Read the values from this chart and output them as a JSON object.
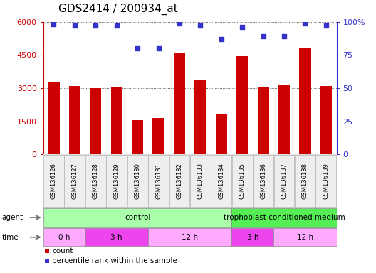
{
  "title": "GDS2414 / 200934_at",
  "samples": [
    "GSM136126",
    "GSM136127",
    "GSM136128",
    "GSM136129",
    "GSM136130",
    "GSM136131",
    "GSM136132",
    "GSM136133",
    "GSM136134",
    "GSM136135",
    "GSM136136",
    "GSM136137",
    "GSM136138",
    "GSM136139"
  ],
  "counts": [
    3300,
    3100,
    3000,
    3050,
    1550,
    1650,
    4600,
    3350,
    1850,
    4450,
    3050,
    3150,
    4800,
    3100
  ],
  "percentile_ranks": [
    98,
    97,
    97,
    97,
    80,
    80,
    99,
    97,
    87,
    96,
    89,
    89,
    99,
    97
  ],
  "bar_color": "#cc0000",
  "dot_color": "#3333cc",
  "ylim_left": [
    0,
    6000
  ],
  "ylim_right": [
    0,
    100
  ],
  "yticks_left": [
    0,
    1500,
    3000,
    4500,
    6000
  ],
  "ytick_labels_left": [
    "0",
    "1500",
    "3000",
    "4500",
    "6000"
  ],
  "yticks_right": [
    0,
    25,
    50,
    75,
    100
  ],
  "ytick_labels_right": [
    "0",
    "25",
    "50",
    "75",
    "100%"
  ],
  "agent_groups": [
    {
      "label": "control",
      "start": 0,
      "end": 9,
      "color": "#aaffaa"
    },
    {
      "label": "trophoblast conditioned medium",
      "start": 9,
      "end": 14,
      "color": "#55ee55"
    }
  ],
  "time_groups": [
    {
      "label": "0 h",
      "start": 0,
      "end": 2,
      "color": "#ffaaff"
    },
    {
      "label": "3 h",
      "start": 2,
      "end": 5,
      "color": "#ee44ee"
    },
    {
      "label": "12 h",
      "start": 5,
      "end": 9,
      "color": "#ffaaff"
    },
    {
      "label": "3 h",
      "start": 9,
      "end": 11,
      "color": "#ee44ee"
    },
    {
      "label": "12 h",
      "start": 11,
      "end": 14,
      "color": "#ffaaff"
    }
  ],
  "legend_items": [
    {
      "label": "count",
      "color": "#cc0000"
    },
    {
      "label": "percentile rank within the sample",
      "color": "#3333cc"
    }
  ],
  "background_color": "#ffffff",
  "grid_color": "#333333",
  "left_tick_color": "#cc0000",
  "right_tick_color": "#3333cc",
  "title_fontsize": 11,
  "tick_fontsize": 8,
  "bar_label_fontsize": 6,
  "annot_fontsize": 7.5,
  "legend_fontsize": 7.5
}
